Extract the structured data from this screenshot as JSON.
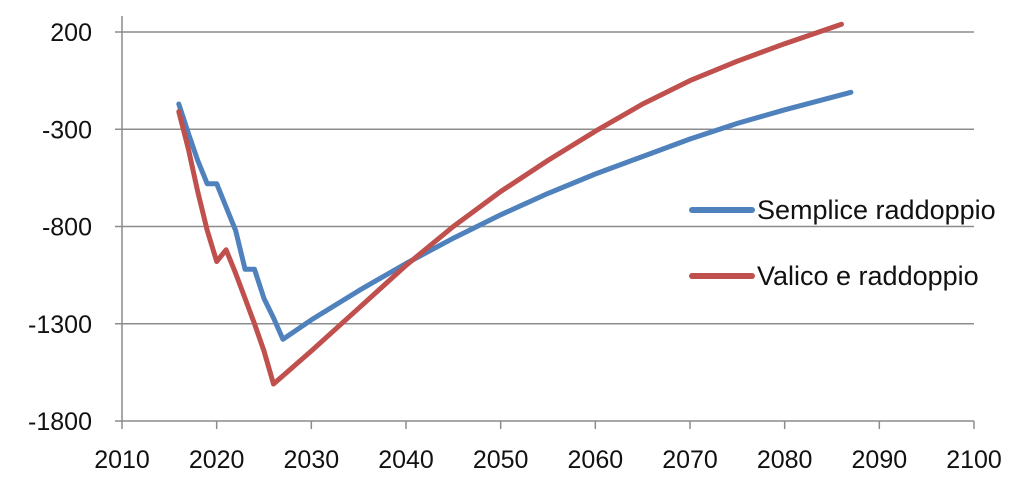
{
  "chart_data": {
    "type": "line",
    "title": "",
    "xlabel": "",
    "ylabel": "",
    "xlim": [
      2010,
      2100
    ],
    "ylim": [
      -1800,
      200
    ],
    "xticks": [
      2010,
      2020,
      2030,
      2040,
      2050,
      2060,
      2070,
      2080,
      2090,
      2100
    ],
    "yticks": [
      200,
      -300,
      -800,
      -1300,
      -1800
    ],
    "grid": "horizontal",
    "legend_position": "right",
    "series": [
      {
        "name": "Semplice raddoppio",
        "color": "#4f81bd",
        "points": [
          [
            2016,
            -170
          ],
          [
            2017,
            -320
          ],
          [
            2018,
            -460
          ],
          [
            2019,
            -580
          ],
          [
            2020,
            -580
          ],
          [
            2021,
            -700
          ],
          [
            2022,
            -820
          ],
          [
            2023,
            -1020
          ],
          [
            2024,
            -1020
          ],
          [
            2025,
            -1170
          ],
          [
            2026,
            -1270
          ],
          [
            2027,
            -1380
          ],
          [
            2030,
            -1280
          ],
          [
            2035,
            -1130
          ],
          [
            2040,
            -990
          ],
          [
            2045,
            -860
          ],
          [
            2050,
            -740
          ],
          [
            2055,
            -630
          ],
          [
            2060,
            -530
          ],
          [
            2065,
            -440
          ],
          [
            2070,
            -350
          ],
          [
            2075,
            -270
          ],
          [
            2080,
            -200
          ],
          [
            2087,
            -110
          ]
        ]
      },
      {
        "name": "Valico e raddoppio",
        "color": "#c0504d",
        "points": [
          [
            2016,
            -210
          ],
          [
            2017,
            -400
          ],
          [
            2018,
            -620
          ],
          [
            2019,
            -820
          ],
          [
            2020,
            -980
          ],
          [
            2021,
            -920
          ],
          [
            2022,
            -1040
          ],
          [
            2023,
            -1170
          ],
          [
            2024,
            -1300
          ],
          [
            2025,
            -1440
          ],
          [
            2026,
            -1610
          ],
          [
            2030,
            -1440
          ],
          [
            2035,
            -1220
          ],
          [
            2040,
            -1000
          ],
          [
            2045,
            -800
          ],
          [
            2050,
            -620
          ],
          [
            2055,
            -460
          ],
          [
            2060,
            -310
          ],
          [
            2065,
            -170
          ],
          [
            2070,
            -50
          ],
          [
            2075,
            50
          ],
          [
            2080,
            140
          ],
          [
            2086,
            240
          ]
        ]
      }
    ]
  }
}
